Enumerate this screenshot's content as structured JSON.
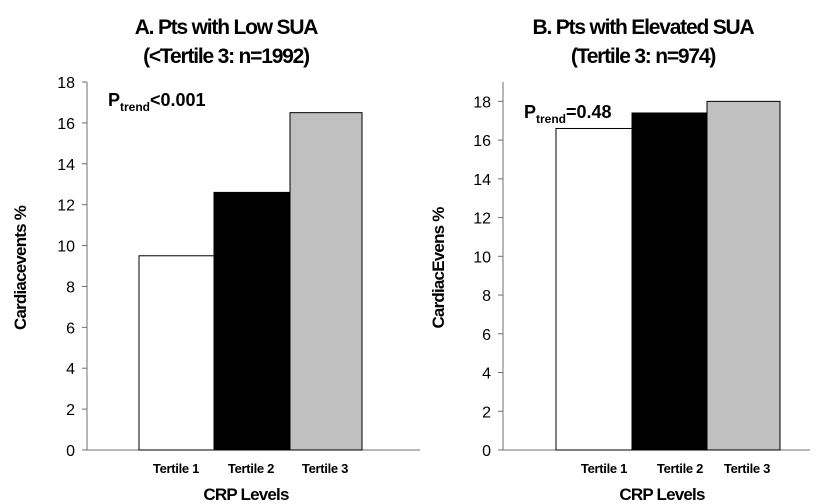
{
  "chart_data": [
    {
      "type": "bar",
      "title": "A. Pts with Low SUA",
      "subtitle": "(<Tertile 3: n=1992)",
      "categories": [
        "Tertile 1",
        "Tertile 2",
        "Tertile 3"
      ],
      "values": [
        9.5,
        12.6,
        16.5
      ],
      "bar_colors": [
        "#ffffff",
        "#000000",
        "#c0c0c0"
      ],
      "xlabel": "CRP Levels",
      "ylabel": "Cardiacevents %",
      "ylim": [
        0,
        18
      ],
      "yticks": [
        "0",
        "2",
        "4",
        "6",
        "8",
        "10",
        "12",
        "14",
        "16",
        "18"
      ],
      "annotation": {
        "main": "P",
        "sub": "trend",
        "rest": "<0.001"
      },
      "grid": false
    },
    {
      "type": "bar",
      "title": "B. Pts with Elevated SUA",
      "subtitle": "(Tertile 3: n=974)",
      "categories": [
        "Tertile 1",
        "Tertile 2",
        "Tertile 3"
      ],
      "values": [
        16.6,
        17.4,
        18.0
      ],
      "bar_colors": [
        "#ffffff",
        "#000000",
        "#c0c0c0"
      ],
      "xlabel": "CRP Levels",
      "ylabel": "CardiacEvens %",
      "ylim": [
        0,
        19
      ],
      "yticks": [
        "0",
        "2",
        "4",
        "6",
        "8",
        "10",
        "12",
        "14",
        "16",
        "18"
      ],
      "annotation": {
        "main": "P",
        "sub": "trend",
        "rest": "=0.48"
      },
      "grid": false
    }
  ]
}
